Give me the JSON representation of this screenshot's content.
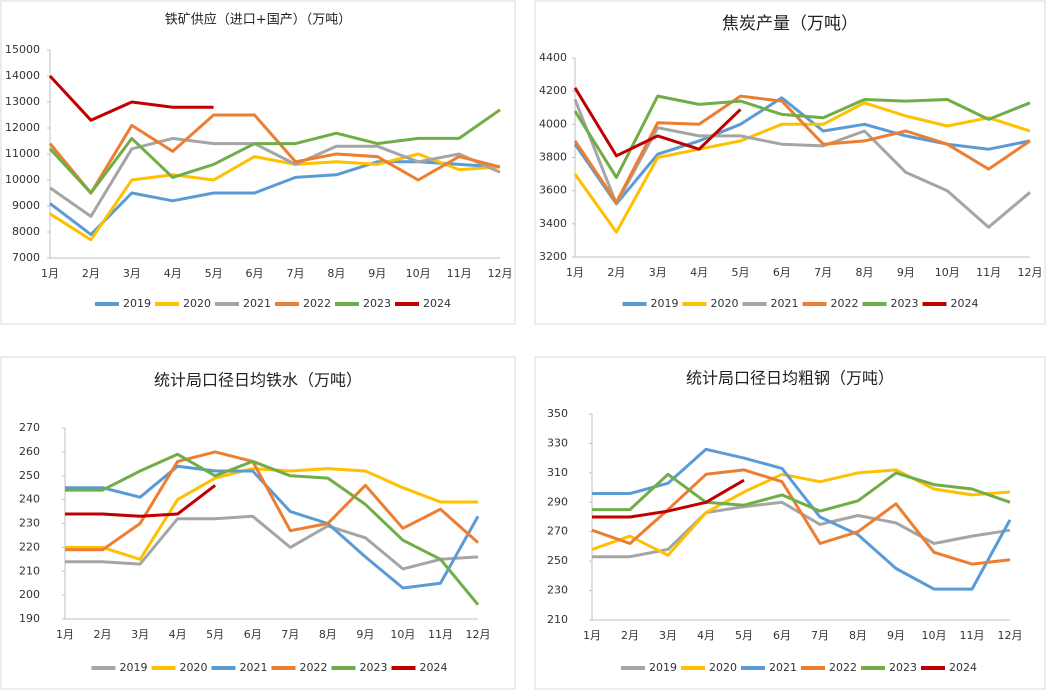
{
  "chart_data": [
    {
      "type": "line",
      "title": "铁矿供应（进口+国产）（万吨）",
      "categories": [
        "1月",
        "2月",
        "3月",
        "4月",
        "5月",
        "6月",
        "7月",
        "8月",
        "9月",
        "10月",
        "11月",
        "12月"
      ],
      "ylim": [
        7000,
        15000
      ],
      "yticks": [
        7000,
        8000,
        9000,
        10000,
        11000,
        12000,
        13000,
        14000,
        15000
      ],
      "legend": "bottom",
      "series": [
        {
          "name": "2019",
          "color": "#5b9bd5",
          "values": [
            9100,
            7900,
            9500,
            9200,
            9500,
            9500,
            10100,
            10200,
            10700,
            10700,
            10600,
            10500
          ]
        },
        {
          "name": "2020",
          "color": "#ffc000",
          "values": [
            8700,
            7700,
            10000,
            10200,
            10000,
            10900,
            10600,
            10700,
            10600,
            11000,
            10400,
            10500
          ]
        },
        {
          "name": "2021",
          "color": "#a5a5a5",
          "values": [
            9700,
            8600,
            11200,
            11600,
            11400,
            11400,
            10600,
            11300,
            11300,
            10700,
            11000,
            10300
          ]
        },
        {
          "name": "2022",
          "color": "#ed7d31",
          "values": [
            11400,
            9500,
            12100,
            11100,
            12500,
            12500,
            10700,
            11000,
            10900,
            10000,
            10900,
            10500
          ]
        },
        {
          "name": "2023",
          "color": "#70ad47",
          "values": [
            11200,
            9500,
            11600,
            10100,
            10600,
            11400,
            11400,
            11800,
            11400,
            11600,
            11600,
            12700
          ]
        },
        {
          "name": "2024",
          "color": "#c00000",
          "values": [
            14000,
            12300,
            13000,
            12800,
            12800,
            null,
            null,
            null,
            null,
            null,
            null,
            null
          ]
        }
      ]
    },
    {
      "type": "line",
      "title": "焦炭产量（万吨）",
      "categories": [
        "1月",
        "2月",
        "3月",
        "4月",
        "5月",
        "6月",
        "7月",
        "8月",
        "9月",
        "10月",
        "11月",
        "12月"
      ],
      "ylim": [
        3200,
        4400
      ],
      "yticks": [
        3200,
        3400,
        3600,
        3800,
        4000,
        4200,
        4400
      ],
      "legend": "bottom",
      "series": [
        {
          "name": "2019",
          "color": "#5b9bd5",
          "values": [
            3880,
            3520,
            3820,
            3900,
            4000,
            4160,
            3960,
            4000,
            3930,
            3880,
            3850,
            3900
          ]
        },
        {
          "name": "2020",
          "color": "#ffc000",
          "values": [
            3700,
            3350,
            3800,
            3850,
            3900,
            4000,
            4000,
            4130,
            4050,
            3990,
            4040,
            3960
          ]
        },
        {
          "name": "2021",
          "color": "#a5a5a5",
          "values": [
            4150,
            3520,
            3980,
            3930,
            3930,
            3880,
            3870,
            3960,
            3710,
            3600,
            3380,
            3590
          ]
        },
        {
          "name": "2022",
          "color": "#ed7d31",
          "values": [
            3900,
            3530,
            4010,
            4000,
            4170,
            4140,
            3880,
            3900,
            3960,
            3880,
            3730,
            3900
          ]
        },
        {
          "name": "2023",
          "color": "#70ad47",
          "values": [
            4080,
            3680,
            4170,
            4120,
            4140,
            4060,
            4040,
            4150,
            4140,
            4150,
            4030,
            4130
          ]
        },
        {
          "name": "2024",
          "color": "#c00000",
          "values": [
            4220,
            3810,
            3930,
            3850,
            4090,
            null,
            null,
            null,
            null,
            null,
            null,
            null
          ]
        }
      ]
    },
    {
      "type": "line",
      "title": "统计局口径日均铁水（万吨）",
      "categories": [
        "1月",
        "2月",
        "3月",
        "4月",
        "5月",
        "6月",
        "7月",
        "8月",
        "9月",
        "10月",
        "11月",
        "12月"
      ],
      "ylim": [
        190,
        270
      ],
      "yticks": [
        190,
        200,
        210,
        220,
        230,
        240,
        250,
        260,
        270
      ],
      "legend": "bottom",
      "series": [
        {
          "name": "2019",
          "color": "#a5a5a5",
          "values": [
            214,
            214,
            213,
            232,
            232,
            233,
            220,
            229,
            224,
            211,
            215,
            216
          ]
        },
        {
          "name": "2020",
          "color": "#ffc000",
          "values": [
            220,
            220,
            215,
            240,
            249,
            253,
            252,
            253,
            252,
            245,
            239,
            239
          ]
        },
        {
          "name": "2021",
          "color": "#5b9bd5",
          "values": [
            245,
            245,
            241,
            254,
            252,
            252,
            235,
            230,
            216,
            203,
            205,
            233
          ]
        },
        {
          "name": "2022",
          "color": "#ed7d31",
          "values": [
            219,
            219,
            230,
            256,
            260,
            256,
            227,
            230,
            246,
            228,
            236,
            222
          ]
        },
        {
          "name": "2023",
          "color": "#70ad47",
          "values": [
            244,
            244,
            252,
            259,
            250,
            256,
            250,
            249,
            238,
            223,
            215,
            196
          ]
        },
        {
          "name": "2024",
          "color": "#c00000",
          "values": [
            234,
            234,
            233,
            234,
            246,
            null,
            null,
            null,
            null,
            null,
            null,
            null
          ]
        }
      ]
    },
    {
      "type": "line",
      "title": "统计局口径日均粗钢（万吨）",
      "categories": [
        "1月",
        "2月",
        "3月",
        "4月",
        "5月",
        "6月",
        "7月",
        "8月",
        "9月",
        "10月",
        "11月",
        "12月"
      ],
      "ylim": [
        210,
        350
      ],
      "yticks": [
        210,
        230,
        250,
        270,
        290,
        310,
        330,
        350
      ],
      "legend": "bottom",
      "series": [
        {
          "name": "2019",
          "color": "#a5a5a5",
          "values": [
            253,
            253,
            258,
            283,
            287,
            290,
            275,
            281,
            276,
            262,
            267,
            271
          ]
        },
        {
          "name": "2020",
          "color": "#ffc000",
          "values": [
            258,
            267,
            254,
            283,
            297,
            309,
            304,
            310,
            312,
            299,
            295,
            297
          ]
        },
        {
          "name": "2021",
          "color": "#5b9bd5",
          "values": [
            296,
            296,
            303,
            326,
            320,
            313,
            280,
            268,
            245,
            231,
            231,
            278
          ]
        },
        {
          "name": "2022",
          "color": "#ed7d31",
          "values": [
            271,
            262,
            285,
            309,
            312,
            304,
            262,
            270,
            289,
            256,
            248,
            251
          ]
        },
        {
          "name": "2023",
          "color": "#70ad47",
          "values": [
            285,
            285,
            309,
            290,
            288,
            295,
            284,
            291,
            310,
            302,
            299,
            290
          ]
        },
        {
          "name": "2024",
          "color": "#c00000",
          "values": [
            280,
            280,
            284,
            290,
            305,
            null,
            null,
            null,
            null,
            null,
            null,
            null
          ]
        }
      ]
    }
  ]
}
